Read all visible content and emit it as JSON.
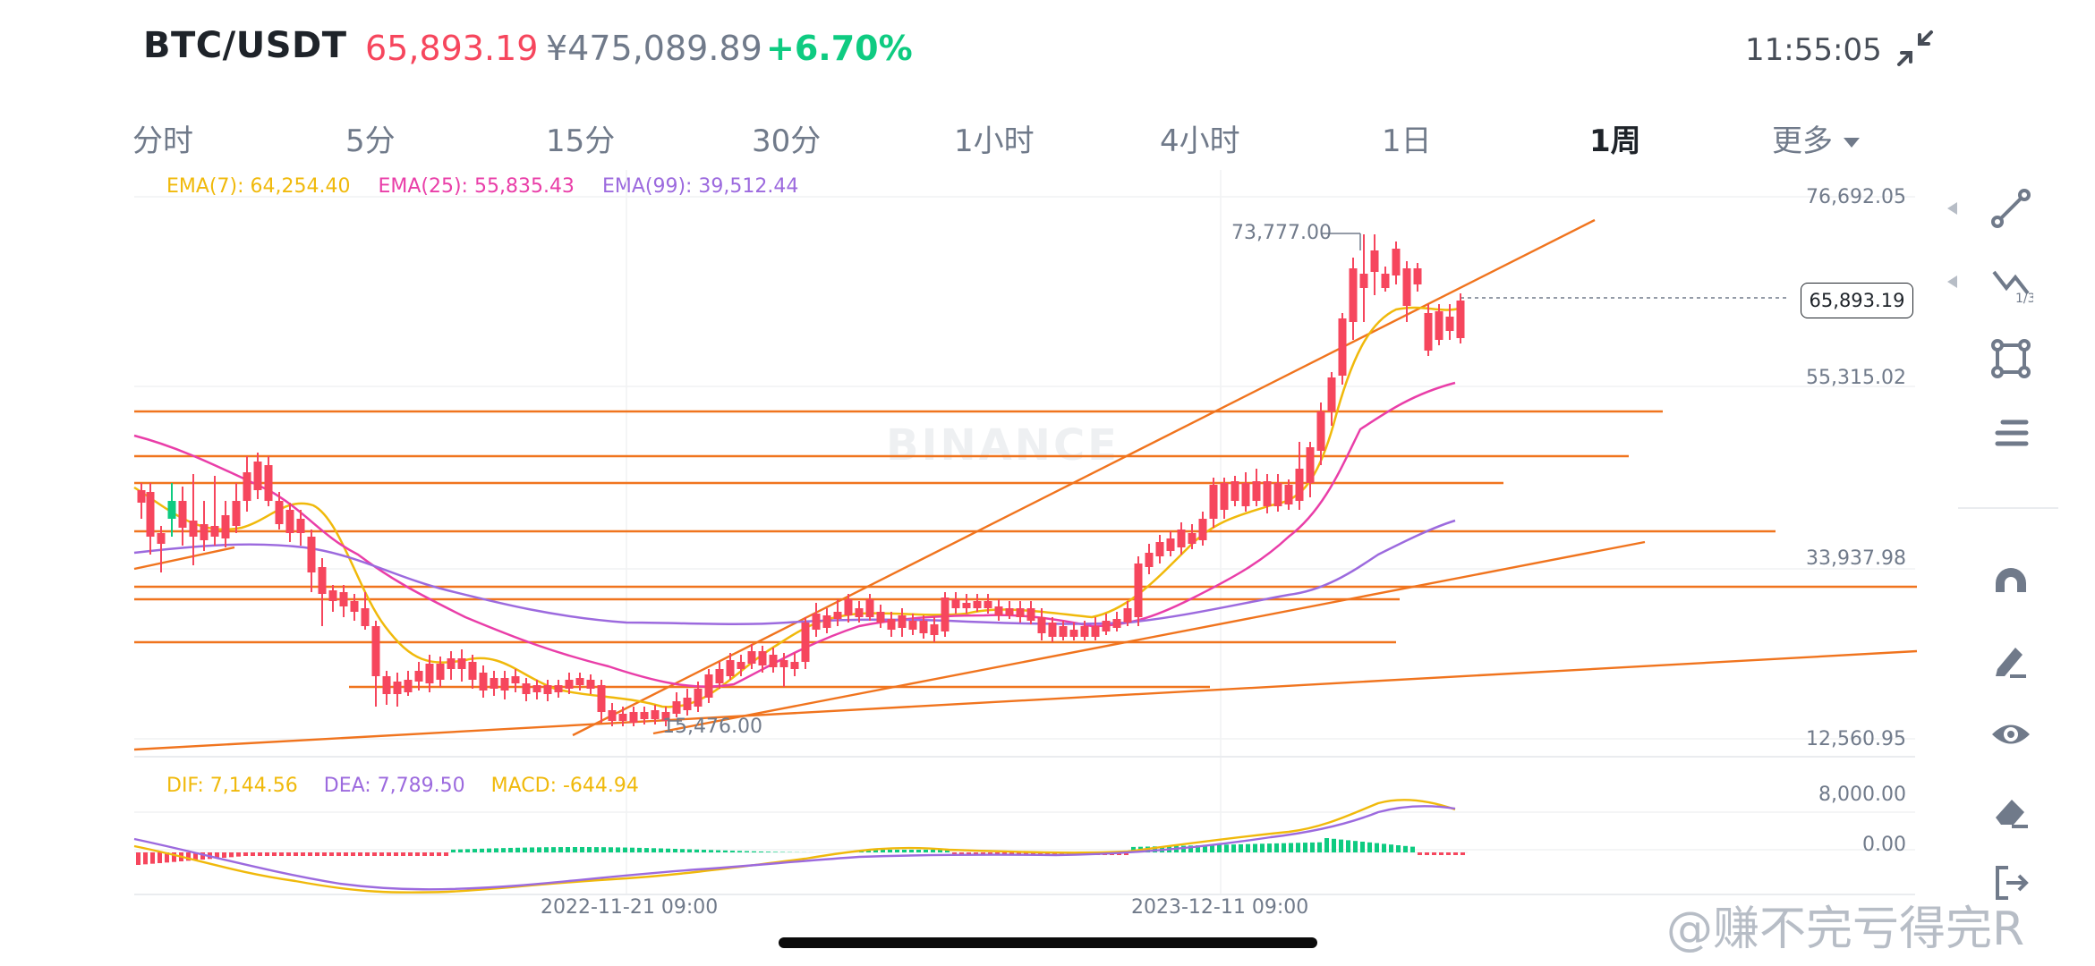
{
  "header": {
    "pair": "BTC/USDT",
    "price": "65,893.19",
    "price_cny": "¥475,089.89",
    "change": "+6.70%",
    "time": "11:55:05"
  },
  "tabs": [
    {
      "label": "分时",
      "active": false
    },
    {
      "label": "5分",
      "active": false
    },
    {
      "label": "15分",
      "active": false
    },
    {
      "label": "30分",
      "active": false
    },
    {
      "label": "1小时",
      "active": false
    },
    {
      "label": "4小时",
      "active": false
    },
    {
      "label": "1日",
      "active": false
    },
    {
      "label": "1周",
      "active": true
    },
    {
      "label": "更多",
      "active": false
    }
  ],
  "ema_legend": {
    "ema7": "EMA(7): 64,254.40",
    "ema25": "EMA(25): 55,835.43",
    "ema99": "EMA(99): 39,512.44",
    "colors": {
      "ema7": "#f0b90b",
      "ema25": "#e93ea8",
      "ema99": "#9c6ade"
    }
  },
  "macd_legend": {
    "dif": "DIF: 7,144.56",
    "dea": "DEA: 7,789.50",
    "macd": "MACD: -644.94",
    "colors": {
      "dif": "#f0b90b",
      "dea": "#9c6ade",
      "macd": "#f0b90b"
    }
  },
  "price_axis": {
    "labels": [
      "76,692.05",
      "55,315.02",
      "33,937.98",
      "12,560.95"
    ],
    "current_price_tag": "65,893.19"
  },
  "macd_axis": {
    "labels": [
      "8,000.00",
      "0.00"
    ]
  },
  "annotations": {
    "high": "73,777.00",
    "low": "15,476.00"
  },
  "time_axis": {
    "labels": [
      "2022-11-21 09:00",
      "2023-12-11 09:00"
    ]
  },
  "watermark": {
    "brand": "BINANCE",
    "credit": "@赚不完亏得完R"
  },
  "colors": {
    "up": "#0ecb81",
    "down": "#f6465d",
    "drawing": "#f0741e",
    "text_muted": "#707a8a"
  },
  "toolbar": [
    {
      "name": "trend-line-icon"
    },
    {
      "name": "fibonacci-icon"
    },
    {
      "name": "rectangle-icon"
    },
    {
      "name": "parallel-channel-icon"
    },
    {
      "name": "magnet-icon"
    },
    {
      "name": "pencil-icon"
    },
    {
      "name": "eye-icon"
    },
    {
      "name": "eraser-icon"
    },
    {
      "name": "export-icon"
    }
  ]
}
